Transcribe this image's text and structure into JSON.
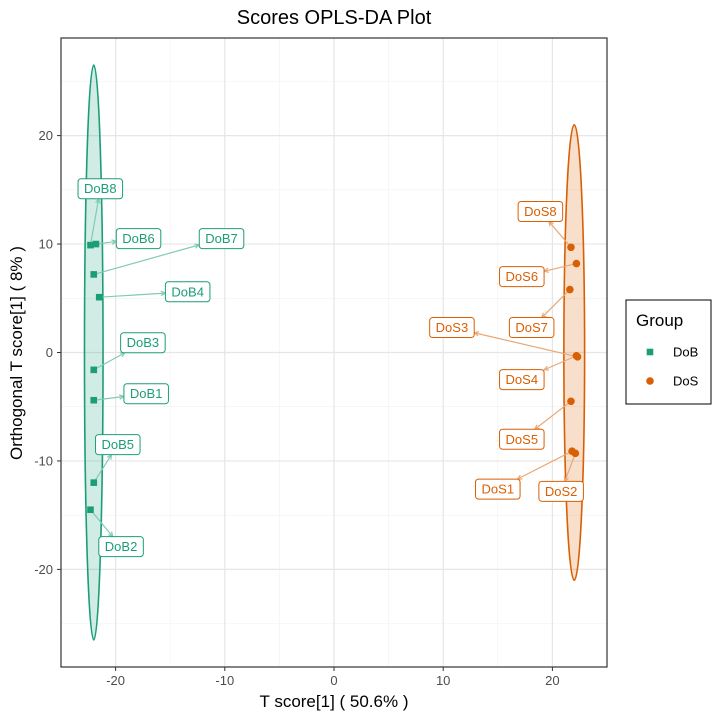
{
  "chart_data": {
    "type": "scatter",
    "title": "Scores OPLS-DA Plot",
    "xlabel": "T score[1] ( 50.6% )",
    "ylabel": "Orthogonal T score[1] ( 8% )",
    "xlim": [
      -25,
      25
    ],
    "ylim": [
      -29,
      29
    ],
    "x_ticks": [
      -20,
      -10,
      0,
      10,
      20
    ],
    "y_ticks": [
      -20,
      -10,
      0,
      10,
      20
    ],
    "grid": true,
    "legend": {
      "title": "Group",
      "placement": "right"
    },
    "series": [
      {
        "name": "DoB",
        "color": "#1b9e77",
        "marker": "square",
        "ellipse": {
          "cx": -22.0,
          "cy": 0.0,
          "rx": 0.85,
          "ry": 26.5
        },
        "points": [
          {
            "label": "DoB1",
            "x": -22.0,
            "y": -4.4,
            "label_x": -17.2,
            "label_y": -3.8
          },
          {
            "label": "DoB2",
            "x": -22.3,
            "y": -14.5,
            "label_x": -19.5,
            "label_y": -17.9
          },
          {
            "label": "DoB3",
            "x": -22.0,
            "y": -1.6,
            "label_x": -17.5,
            "label_y": 0.9
          },
          {
            "label": "DoB4",
            "x": -21.5,
            "y": 5.1,
            "label_x": -13.4,
            "label_y": 5.6
          },
          {
            "label": "DoB5",
            "x": -22.0,
            "y": -12.0,
            "label_x": -19.8,
            "label_y": -8.5
          },
          {
            "label": "DoB6",
            "x": -21.8,
            "y": 10.0,
            "label_x": -17.9,
            "label_y": 10.5
          },
          {
            "label": "DoB7",
            "x": -22.0,
            "y": 7.2,
            "label_x": -10.3,
            "label_y": 10.5
          },
          {
            "label": "DoB8",
            "x": -22.3,
            "y": 9.9,
            "label_x": -21.4,
            "label_y": 15.1
          }
        ]
      },
      {
        "name": "DoS",
        "color": "#d95f02",
        "marker": "circle",
        "ellipse": {
          "cx": 22.0,
          "cy": 0.0,
          "rx": 0.95,
          "ry": 21.0
        },
        "points": [
          {
            "label": "DoS1",
            "x": 21.8,
            "y": -9.1,
            "label_x": 15.0,
            "label_y": -12.6
          },
          {
            "label": "DoS2",
            "x": 22.1,
            "y": -9.3,
            "label_x": 20.8,
            "label_y": -12.8
          },
          {
            "label": "DoS3",
            "x": 22.3,
            "y": -0.4,
            "label_x": 10.8,
            "label_y": 2.3
          },
          {
            "label": "DoS4",
            "x": 22.2,
            "y": -0.3,
            "label_x": 17.2,
            "label_y": -2.5
          },
          {
            "label": "DoS5",
            "x": 21.7,
            "y": -4.5,
            "label_x": 17.2,
            "label_y": -8.0
          },
          {
            "label": "DoS6",
            "x": 22.2,
            "y": 8.2,
            "label_x": 17.2,
            "label_y": 7.0
          },
          {
            "label": "DoS7",
            "x": 21.6,
            "y": 5.8,
            "label_x": 18.1,
            "label_y": 2.3
          },
          {
            "label": "DoS8",
            "x": 21.7,
            "y": 9.7,
            "label_x": 18.9,
            "label_y": 13.0
          }
        ]
      }
    ]
  }
}
